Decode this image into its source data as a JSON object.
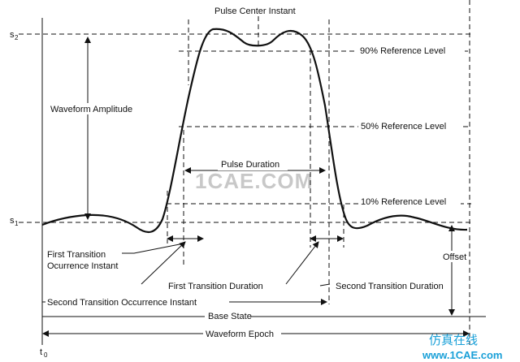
{
  "diagram": {
    "labels": {
      "pulse_center_instant": "Pulse Center Instant",
      "s2": "s",
      "s2_sub": "2",
      "s1": "s",
      "s1_sub": "1",
      "ref_90": "90% Reference Level",
      "ref_50": "50% Reference Level",
      "ref_10": "10% Reference Level",
      "waveform_amplitude": "Waveform Amplitude",
      "pulse_duration": "Pulse Duration",
      "first_transition_occurrence_line1": "First Transition",
      "first_transition_occurrence_line2": "Ocurrence Instant",
      "first_transition_duration": "First Transition Duration",
      "second_transition_duration": "Second Transition Duration",
      "second_transition_occurrence_instant": "Second Transition Occurrence Instant",
      "offset": "Offset",
      "base_state": "Base State",
      "waveform_epoch": "Waveform Epoch",
      "t0": "t",
      "t0_sub": "0"
    },
    "watermark": "1CAE.COM",
    "brand": {
      "cn_text": "仿真在线",
      "url": "www.1CAE.com"
    }
  }
}
